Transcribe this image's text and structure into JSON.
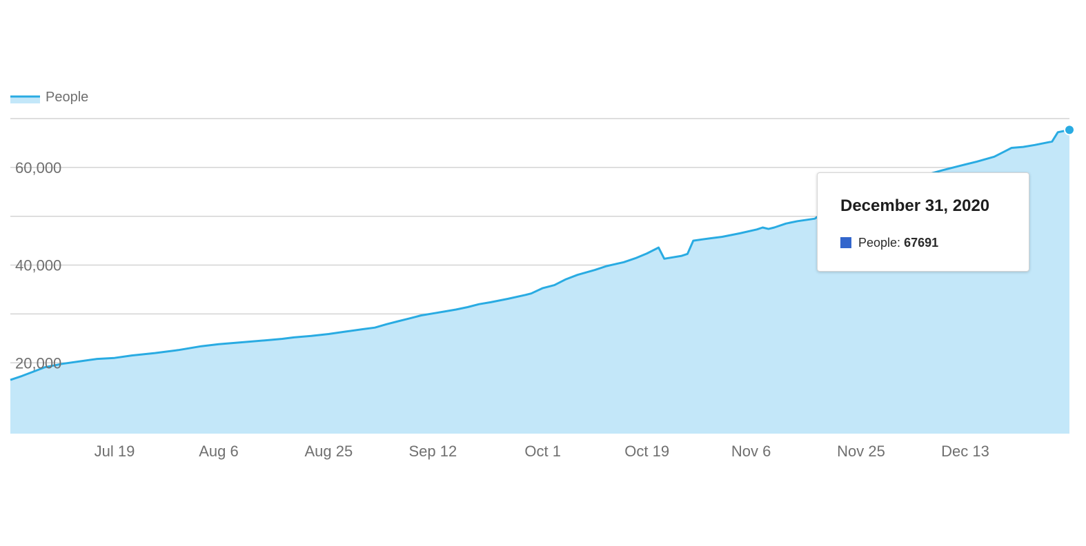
{
  "chart_data": {
    "type": "area",
    "legend": {
      "position": "top-left",
      "entries": [
        "People"
      ]
    },
    "series": [
      {
        "name": "People",
        "line_color": "#29abe2",
        "fill_color": "#c3e7f9",
        "points": [
          [
            "2020-07-01",
            16500
          ],
          [
            "2020-07-03",
            17300
          ],
          [
            "2020-07-05",
            18200
          ],
          [
            "2020-07-07",
            19100
          ],
          [
            "2020-07-10",
            19800
          ],
          [
            "2020-07-13",
            20300
          ],
          [
            "2020-07-16",
            20800
          ],
          [
            "2020-07-19",
            21000
          ],
          [
            "2020-07-22",
            21500
          ],
          [
            "2020-07-26",
            22000
          ],
          [
            "2020-07-30",
            22600
          ],
          [
            "2020-08-03",
            23400
          ],
          [
            "2020-08-06",
            23800
          ],
          [
            "2020-08-10",
            24200
          ],
          [
            "2020-08-14",
            24600
          ],
          [
            "2020-08-17",
            24900
          ],
          [
            "2020-08-19",
            25200
          ],
          [
            "2020-08-22",
            25500
          ],
          [
            "2020-08-25",
            25900
          ],
          [
            "2020-08-28",
            26400
          ],
          [
            "2020-08-31",
            26900
          ],
          [
            "2020-09-02",
            27200
          ],
          [
            "2020-09-04",
            27900
          ],
          [
            "2020-09-06",
            28500
          ],
          [
            "2020-09-08",
            29100
          ],
          [
            "2020-09-10",
            29700
          ],
          [
            "2020-09-12",
            30100
          ],
          [
            "2020-09-14",
            30500
          ],
          [
            "2020-09-16",
            30900
          ],
          [
            "2020-09-18",
            31400
          ],
          [
            "2020-09-20",
            32000
          ],
          [
            "2020-09-22",
            32400
          ],
          [
            "2020-09-25",
            33100
          ],
          [
            "2020-09-28",
            33900
          ],
          [
            "2020-09-29",
            34200
          ],
          [
            "2020-10-01",
            35300
          ],
          [
            "2020-10-03",
            35900
          ],
          [
            "2020-10-05",
            37100
          ],
          [
            "2020-10-07",
            38000
          ],
          [
            "2020-10-10",
            39000
          ],
          [
            "2020-10-12",
            39800
          ],
          [
            "2020-10-15",
            40600
          ],
          [
            "2020-10-17",
            41400
          ],
          [
            "2020-10-19",
            42400
          ],
          [
            "2020-10-21",
            43600
          ],
          [
            "2020-10-22",
            41300
          ],
          [
            "2020-10-25",
            41900
          ],
          [
            "2020-10-26",
            42300
          ],
          [
            "2020-10-27",
            45000
          ],
          [
            "2020-10-30",
            45500
          ],
          [
            "2020-11-01",
            45800
          ],
          [
            "2020-11-04",
            46500
          ],
          [
            "2020-11-07",
            47300
          ],
          [
            "2020-11-08",
            47700
          ],
          [
            "2020-11-09",
            47400
          ],
          [
            "2020-11-10",
            47700
          ],
          [
            "2020-11-12",
            48500
          ],
          [
            "2020-11-14",
            49000
          ],
          [
            "2020-11-17",
            49500
          ],
          [
            "2020-11-20",
            52000
          ],
          [
            "2020-11-25",
            55000
          ],
          [
            "2020-12-02",
            57200
          ],
          [
            "2020-12-06",
            58400
          ],
          [
            "2020-12-09",
            59400
          ],
          [
            "2020-12-12",
            60300
          ],
          [
            "2020-12-15",
            61200
          ],
          [
            "2020-12-18",
            62200
          ],
          [
            "2020-12-20",
            63400
          ],
          [
            "2020-12-21",
            64000
          ],
          [
            "2020-12-23",
            64200
          ],
          [
            "2020-12-25",
            64600
          ],
          [
            "2020-12-28",
            65300
          ],
          [
            "2020-12-29",
            67200
          ],
          [
            "2020-12-31",
            67691
          ]
        ]
      }
    ],
    "x_axis": {
      "type": "date",
      "range": [
        "2020-07-01",
        "2020-12-31"
      ],
      "ticks": [
        {
          "date": "2020-07-19",
          "label": "Jul 19"
        },
        {
          "date": "2020-08-06",
          "label": "Aug 6"
        },
        {
          "date": "2020-08-25",
          "label": "Aug 25"
        },
        {
          "date": "2020-09-12",
          "label": "Sep 12"
        },
        {
          "date": "2020-10-01",
          "label": "Oct 1"
        },
        {
          "date": "2020-10-19",
          "label": "Oct 19"
        },
        {
          "date": "2020-11-06",
          "label": "Nov 6"
        },
        {
          "date": "2020-11-25",
          "label": "Nov 25"
        },
        {
          "date": "2020-12-13",
          "label": "Dec 13"
        }
      ]
    },
    "y_axis": {
      "range": [
        5500,
        70000
      ],
      "gridlines": [
        10000,
        20000,
        30000,
        40000,
        50000,
        60000,
        70000
      ],
      "tick_labels": [
        {
          "value": 20000,
          "label": "20,000"
        },
        {
          "value": 40000,
          "label": "40,000"
        },
        {
          "value": 60000,
          "label": "60,000"
        }
      ]
    },
    "grid": true,
    "tooltip": {
      "title": "December 31, 2020",
      "series_label": "People:",
      "value": "67691",
      "swatch_color": "#3366cc"
    }
  }
}
